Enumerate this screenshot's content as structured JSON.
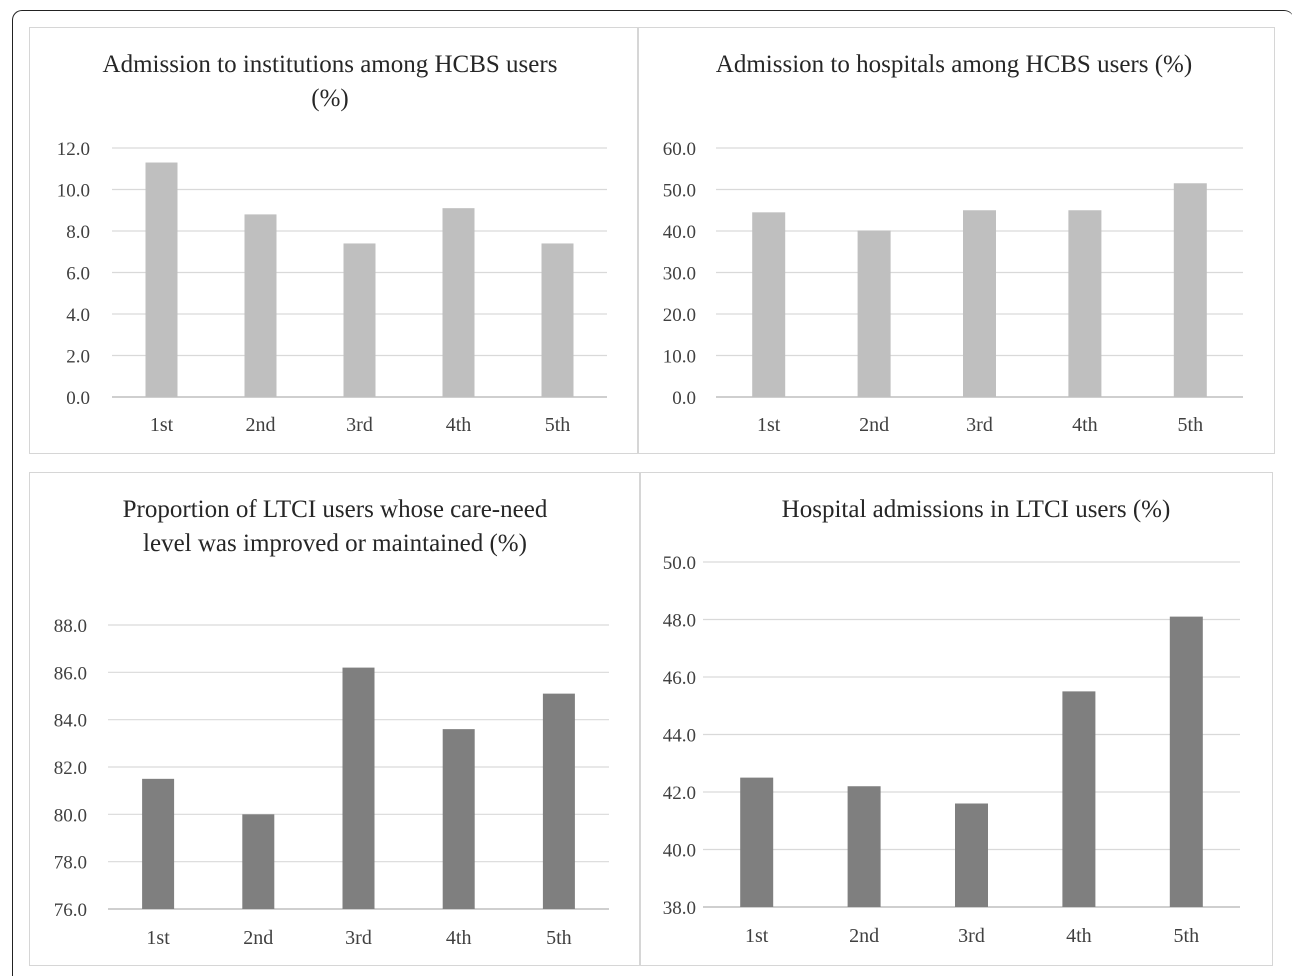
{
  "chart_data": [
    {
      "type": "bar",
      "title": "Admission to institutions among HCBS users (%)",
      "categories": [
        "1st",
        "2nd",
        "3rd",
        "4th",
        "5th"
      ],
      "values": [
        11.3,
        8.8,
        7.4,
        9.1,
        7.4
      ],
      "ylim": [
        0,
        12
      ],
      "yticks": [
        "0.0",
        "2.0",
        "4.0",
        "6.0",
        "8.0",
        "10.0",
        "12.0"
      ],
      "grid": true,
      "bar_color": "#bfbfbf"
    },
    {
      "type": "bar",
      "title": "Admission to hospitals among HCBS users (%)",
      "categories": [
        "1st",
        "2nd",
        "3rd",
        "4th",
        "5th"
      ],
      "values": [
        44.5,
        40.1,
        45.0,
        45.0,
        51.5
      ],
      "ylim": [
        0,
        60
      ],
      "yticks": [
        "0.0",
        "10.0",
        "20.0",
        "30.0",
        "40.0",
        "50.0",
        "60.0"
      ],
      "grid": true,
      "bar_color": "#bfbfbf"
    },
    {
      "type": "bar",
      "title": "Proportion of LTCI users whose care-need level was improved or maintained (%)",
      "categories": [
        "1st",
        "2nd",
        "3rd",
        "4th",
        "5th"
      ],
      "values": [
        81.5,
        80.0,
        86.2,
        83.6,
        85.1
      ],
      "ylim": [
        76,
        88
      ],
      "yticks": [
        "76.0",
        "78.0",
        "80.0",
        "82.0",
        "84.0",
        "86.0",
        "88.0"
      ],
      "grid": true,
      "bar_color": "#7f7f7f"
    },
    {
      "type": "bar",
      "title": "Hospital admissions in LTCI users (%)",
      "categories": [
        "1st",
        "2nd",
        "3rd",
        "4th",
        "5th"
      ],
      "values": [
        42.5,
        42.2,
        41.6,
        45.5,
        48.1
      ],
      "ylim": [
        38,
        50
      ],
      "yticks": [
        "38.0",
        "40.0",
        "42.0",
        "44.0",
        "46.0",
        "48.0",
        "50.0"
      ],
      "grid": true,
      "bar_color": "#7f7f7f"
    }
  ]
}
